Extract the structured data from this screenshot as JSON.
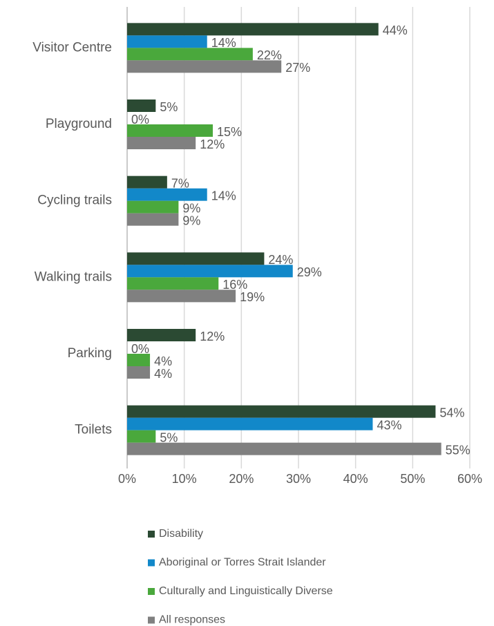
{
  "chart_data": {
    "type": "hbar",
    "categories": [
      "Visitor Centre",
      "Playground",
      "Cycling trails",
      "Walking trails",
      "Parking",
      "Toilets"
    ],
    "series": [
      {
        "name": "Disability",
        "color": "#2b4a33",
        "values": [
          44,
          5,
          7,
          24,
          12,
          54
        ],
        "value_labels": [
          "44%",
          "5%",
          "7%",
          "24%",
          "12%",
          "54%"
        ]
      },
      {
        "name": "Aboriginal or Torres Strait Islander",
        "color": "#1288c9",
        "values": [
          14,
          0,
          14,
          29,
          0,
          43
        ],
        "value_labels": [
          "14%",
          "0%",
          "14%",
          "29%",
          "0%",
          "43%"
        ]
      },
      {
        "name": "Culturally and Linguistically Diverse",
        "color": "#4aa83c",
        "values": [
          22,
          15,
          9,
          16,
          4,
          5
        ],
        "value_labels": [
          "22%",
          "15%",
          "9%",
          "16%",
          "4%",
          "5%"
        ]
      },
      {
        "name": "All responses",
        "color": "#808080",
        "values": [
          27,
          12,
          9,
          19,
          4,
          55
        ],
        "value_labels": [
          "27%",
          "12%",
          "9%",
          "19%",
          "4%",
          "55%"
        ]
      }
    ],
    "xlim": [
      0,
      60
    ],
    "xticks": [
      {
        "value": 0,
        "label": "0%"
      },
      {
        "value": 10,
        "label": "10%"
      },
      {
        "value": 20,
        "label": "20%"
      },
      {
        "value": 30,
        "label": "30%"
      },
      {
        "value": 40,
        "label": "40%"
      },
      {
        "value": 50,
        "label": "50%"
      },
      {
        "value": 60,
        "label": "60%"
      }
    ],
    "grid": true,
    "legend": "bottom"
  }
}
